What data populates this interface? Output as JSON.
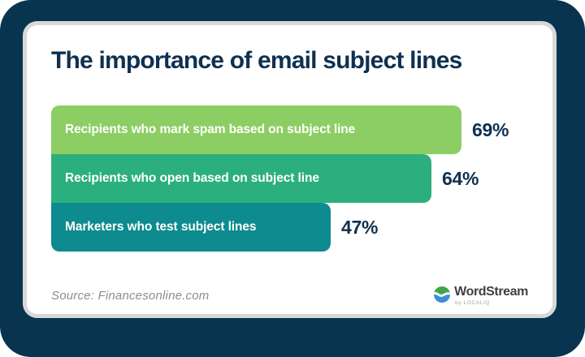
{
  "chart_data": {
    "type": "bar",
    "orientation": "horizontal",
    "title": "The importance of email subject lines",
    "categories": [
      "Recipients who mark spam based on subject line",
      "Recipients who open based on subject line",
      "Marketers who test subject lines"
    ],
    "values": [
      69,
      64,
      47
    ],
    "unit": "%",
    "value_labels": [
      "69%",
      "64%",
      "47%"
    ],
    "bar_colors": [
      "#8CCE63",
      "#2CAF7F",
      "#0E8B8F"
    ],
    "xlim": [
      0,
      100
    ],
    "grid": false,
    "legend": false,
    "value_label_position": "right-of-bar"
  },
  "source": {
    "caption": "Source: Financesonline.com"
  },
  "branding": {
    "logo_name": "WordStream",
    "byline": "by LOCALIQ",
    "logo_green": "#3FA748",
    "logo_blue": "#3A8EDC"
  },
  "colors": {
    "frame_navy": "#09344F",
    "card_bg": "#FFFFFF",
    "card_border": "#D8D8D8",
    "title_navy": "#0F3150",
    "bar_text_white": "#FFFFFF",
    "source_gray": "#8B8B93"
  }
}
